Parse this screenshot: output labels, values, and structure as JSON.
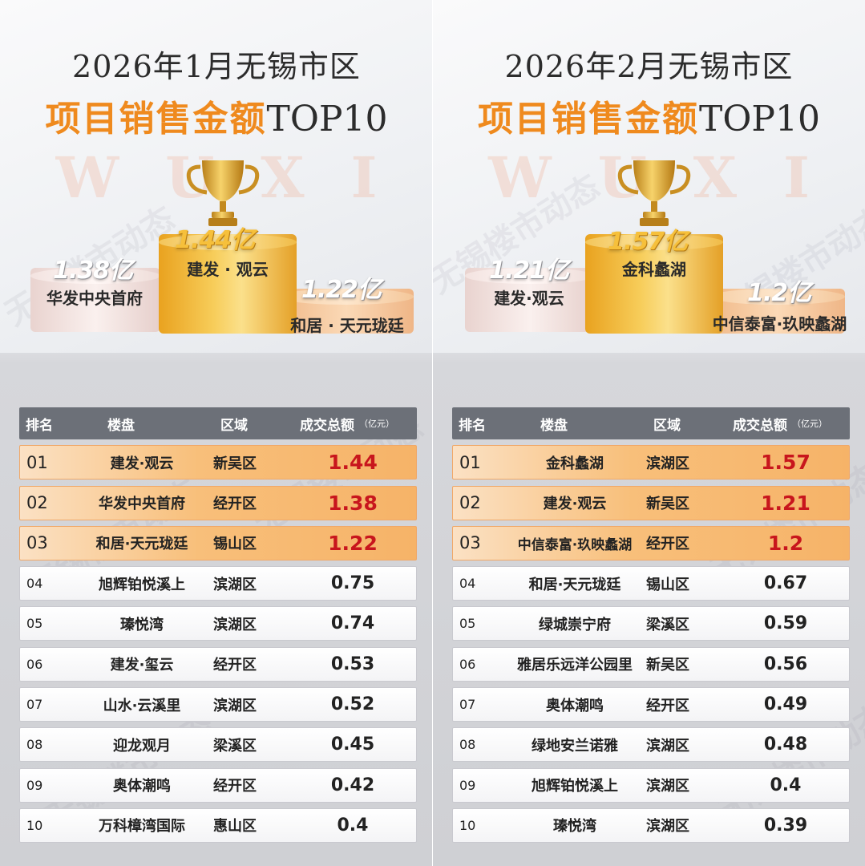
{
  "watermark_text": "无锡楼市动态",
  "background_text": "WUXI",
  "columns": {
    "rank": "排名",
    "project": "楼盘",
    "district": "区域",
    "amount": "成交总额",
    "unit": "（亿元）"
  },
  "colors": {
    "accent": "#ef8a1e",
    "highlight_value": "#c8161d",
    "header_bg": "#6c7078"
  },
  "chart_data": [
    {
      "type": "table",
      "title_line1": "2026年1月无锡市区",
      "title_line2_main": "项目销售金额",
      "title_line2_suffix": "TOP10",
      "podium": {
        "first": {
          "value_label": "1.44亿",
          "name": "建发 · 观云"
        },
        "second": {
          "value_label": "1.38亿",
          "name": "华发中央首府"
        },
        "third": {
          "value_label": "1.22亿",
          "name": "和居 · 天元珑廷"
        }
      },
      "rows": [
        {
          "rank": "01",
          "project": "建发·观云",
          "district": "新吴区",
          "amount": "1.44"
        },
        {
          "rank": "02",
          "project": "华发中央首府",
          "district": "经开区",
          "amount": "1.38"
        },
        {
          "rank": "03",
          "project": "和居·天元珑廷",
          "district": "锡山区",
          "amount": "1.22"
        },
        {
          "rank": "04",
          "project": "旭辉铂悦溪上",
          "district": "滨湖区",
          "amount": "0.75"
        },
        {
          "rank": "05",
          "project": "瑧悦湾",
          "district": "滨湖区",
          "amount": "0.74"
        },
        {
          "rank": "06",
          "project": "建发·玺云",
          "district": "经开区",
          "amount": "0.53"
        },
        {
          "rank": "07",
          "project": "山水·云溪里",
          "district": "滨湖区",
          "amount": "0.52"
        },
        {
          "rank": "08",
          "project": "迎龙观月",
          "district": "梁溪区",
          "amount": "0.45"
        },
        {
          "rank": "09",
          "project": "奥体潮鸣",
          "district": "经开区",
          "amount": "0.42"
        },
        {
          "rank": "10",
          "project": "万科樟湾国际",
          "district": "惠山区",
          "amount": "0.4"
        }
      ]
    },
    {
      "type": "table",
      "title_line1": "2026年2月无锡市区",
      "title_line2_main": "项目销售金额",
      "title_line2_suffix": "TOP10",
      "podium": {
        "first": {
          "value_label": "1.57亿",
          "name": "金科蠡湖"
        },
        "second": {
          "value_label": "1.21亿",
          "name": "建发·观云"
        },
        "third": {
          "value_label": "1.2亿",
          "name": "中信泰富·玖映蠡湖"
        }
      },
      "rows": [
        {
          "rank": "01",
          "project": "金科蠡湖",
          "district": "滨湖区",
          "amount": "1.57"
        },
        {
          "rank": "02",
          "project": "建发·观云",
          "district": "新吴区",
          "amount": "1.21"
        },
        {
          "rank": "03",
          "project": "中信泰富·玖映蠡湖",
          "district": "经开区",
          "amount": "1.2"
        },
        {
          "rank": "04",
          "project": "和居·天元珑廷",
          "district": "锡山区",
          "amount": "0.67"
        },
        {
          "rank": "05",
          "project": "绿城崇宁府",
          "district": "梁溪区",
          "amount": "0.59"
        },
        {
          "rank": "06",
          "project": "雅居乐远洋公园里",
          "district": "新吴区",
          "amount": "0.56"
        },
        {
          "rank": "07",
          "project": "奥体潮鸣",
          "district": "经开区",
          "amount": "0.49"
        },
        {
          "rank": "08",
          "project": "绿地安兰诺雅",
          "district": "滨湖区",
          "amount": "0.48"
        },
        {
          "rank": "09",
          "project": "旭辉铂悦溪上",
          "district": "滨湖区",
          "amount": "0.4"
        },
        {
          "rank": "10",
          "project": "瑧悦湾",
          "district": "滨湖区",
          "amount": "0.39"
        }
      ]
    }
  ]
}
